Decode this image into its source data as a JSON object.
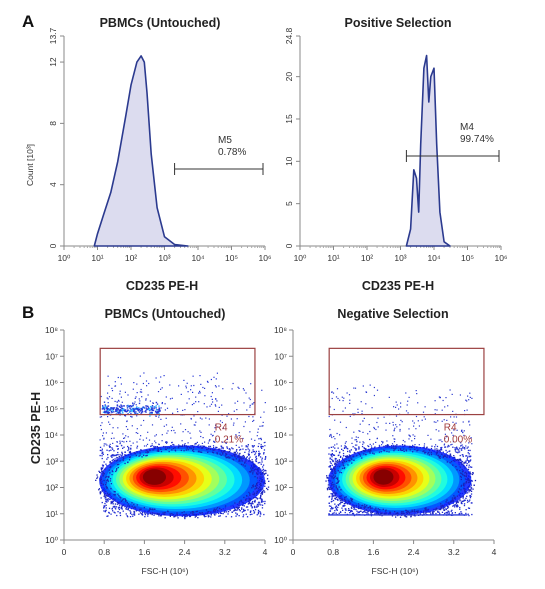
{
  "panels": {
    "a": "A",
    "b": "B"
  },
  "chart_data": [
    {
      "type": "histogram",
      "title": "PBMCs (Untouched)",
      "xlabel": "CD235 PE-H",
      "ylabel": "Count [10³]",
      "x_scale": "log",
      "xlim": [
        1,
        1000000
      ],
      "x_ticks": [
        "10⁰",
        "10¹",
        "10²",
        "10³",
        "10⁴",
        "10⁵",
        "10⁶"
      ],
      "ylim": [
        0,
        13.7
      ],
      "y_ticks": [
        "0",
        "4",
        "8",
        "12",
        "13.7"
      ],
      "gate": {
        "name": "M5",
        "percent": "0.78%",
        "range": [
          2000,
          1000000
        ]
      },
      "series": [
        {
          "x": [
            8,
            10,
            15,
            25,
            40,
            70,
            100,
            150,
            200,
            250,
            300,
            400,
            600,
            1000,
            2000,
            5000
          ],
          "y": [
            0,
            0.8,
            2.0,
            3.5,
            5.5,
            8.5,
            10.5,
            12.0,
            12.4,
            12.0,
            10.0,
            6.0,
            2.5,
            0.6,
            0.1,
            0
          ]
        }
      ]
    },
    {
      "type": "histogram",
      "title": "Positive Selection",
      "xlabel": "CD235 PE-H",
      "x_scale": "log",
      "xlim": [
        1,
        1000000
      ],
      "x_ticks": [
        "10⁰",
        "10¹",
        "10²",
        "10³",
        "10⁴",
        "10⁵",
        "10⁶"
      ],
      "ylim": [
        0,
        24.8
      ],
      "y_ticks": [
        "0",
        "5",
        "10",
        "15",
        "20",
        "24.8"
      ],
      "gate": {
        "name": "M4",
        "percent": "99.74%",
        "range": [
          1500,
          1000000
        ]
      },
      "series": [
        {
          "x": [
            1500,
            2000,
            2500,
            3000,
            3500,
            4000,
            5000,
            6000,
            7000,
            8000,
            10000,
            12000,
            15000,
            20000,
            30000
          ],
          "y": [
            0,
            2,
            9,
            8,
            4,
            12,
            21,
            22.5,
            17,
            20,
            21,
            12,
            4,
            0.5,
            0
          ]
        }
      ]
    },
    {
      "type": "scatter",
      "title": "PBMCs (Untouched)",
      "xlabel": "FSC-H  (10⁶)",
      "ylabel": "CD235 PE-H",
      "xlim": [
        0,
        4
      ],
      "x_ticks": [
        "0",
        "0.8",
        "1.6",
        "2.4",
        "3.2",
        "4"
      ],
      "y_scale": "log",
      "ylim": [
        1,
        100000000
      ],
      "y_ticks": [
        "10⁰",
        "10¹",
        "10²",
        "10³",
        "10⁴",
        "10⁵",
        "10⁶",
        "10⁷",
        "10⁸"
      ],
      "region": {
        "name": "R4",
        "percent": "0.21%"
      },
      "density_center": {
        "x": 1.8,
        "y": 250
      }
    },
    {
      "type": "scatter",
      "title": "Negative Selection",
      "xlabel": "FSC-H  (10⁶)",
      "xlim": [
        0,
        4
      ],
      "x_ticks": [
        "0",
        "0.8",
        "1.6",
        "2.4",
        "3.2",
        "4"
      ],
      "y_scale": "log",
      "ylim": [
        1,
        100000000
      ],
      "y_ticks": [
        "10⁰",
        "10¹",
        "10²",
        "10³",
        "10⁴",
        "10⁵",
        "10⁶",
        "10⁷",
        "10⁸"
      ],
      "region": {
        "name": "R4",
        "percent": "0.00%"
      },
      "density_center": {
        "x": 1.8,
        "y": 250
      }
    }
  ],
  "colors": {
    "histogram_line": "#2b3a8f",
    "histogram_fill": "#dcdcef",
    "region_rect": "#9b4141",
    "gate_line": "#333333"
  }
}
